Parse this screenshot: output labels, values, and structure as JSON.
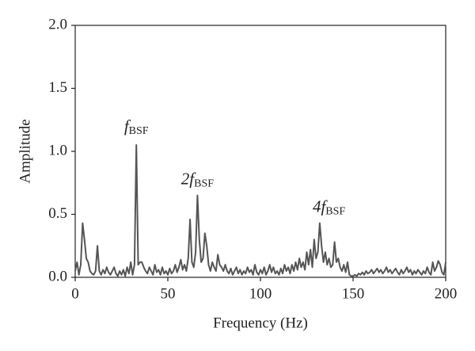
{
  "chart_data": {
    "type": "line",
    "xlabel": "Frequency (Hz)",
    "ylabel": "Amplitude",
    "xlim": [
      0,
      200
    ],
    "ylim": [
      0,
      2
    ],
    "xticks": [
      0,
      50,
      100,
      150,
      200
    ],
    "yticks": [
      {
        "value": 0,
        "label": "0.0"
      },
      0.5,
      {
        "value": 1,
        "label": "1.0"
      },
      1.5,
      {
        "value": 2,
        "label": "2.0"
      }
    ],
    "grid": false,
    "annotations": [
      {
        "text": "f",
        "subscript": "BSF",
        "x": 33,
        "y": 1.19
      },
      {
        "text": "2f",
        "subscript": "BSF",
        "x": 66,
        "y": 0.77
      },
      {
        "text": "4f",
        "subscript": "BSF",
        "x": 137,
        "y": 0.55
      }
    ],
    "x": [
      0,
      1,
      2,
      3,
      4,
      5,
      6,
      7,
      8,
      9,
      10,
      11,
      12,
      13,
      14,
      15,
      16,
      17,
      18,
      19,
      20,
      21,
      22,
      23,
      24,
      25,
      26,
      27,
      28,
      29,
      30,
      31,
      32,
      33,
      34,
      35,
      36,
      37,
      38,
      39,
      40,
      41,
      42,
      43,
      44,
      45,
      46,
      47,
      48,
      49,
      50,
      51,
      52,
      53,
      54,
      55,
      56,
      57,
      58,
      59,
      60,
      61,
      62,
      63,
      64,
      65,
      66,
      67,
      68,
      69,
      70,
      71,
      72,
      73,
      74,
      75,
      76,
      77,
      78,
      79,
      80,
      81,
      82,
      83,
      84,
      85,
      86,
      87,
      88,
      89,
      90,
      91,
      92,
      93,
      94,
      95,
      96,
      97,
      98,
      99,
      100,
      101,
      102,
      103,
      104,
      105,
      106,
      107,
      108,
      109,
      110,
      111,
      112,
      113,
      114,
      115,
      116,
      117,
      118,
      119,
      120,
      121,
      122,
      123,
      124,
      125,
      126,
      127,
      128,
      129,
      130,
      131,
      132,
      133,
      134,
      135,
      136,
      137,
      138,
      139,
      140,
      141,
      142,
      143,
      144,
      145,
      146,
      147,
      148,
      149,
      150,
      151,
      152,
      153,
      154,
      155,
      156,
      157,
      158,
      159,
      160,
      161,
      162,
      163,
      164,
      165,
      166,
      167,
      168,
      169,
      170,
      171,
      172,
      173,
      174,
      175,
      176,
      177,
      178,
      179,
      180,
      181,
      182,
      183,
      184,
      185,
      186,
      187,
      188,
      189,
      190,
      191,
      192,
      193,
      194,
      195,
      196,
      197,
      198,
      199,
      200
    ],
    "series": [
      {
        "color": "#555555",
        "values": [
          0.05,
          0.12,
          0.02,
          0.1,
          0.43,
          0.3,
          0.15,
          0.12,
          0.05,
          0.03,
          0.02,
          0.05,
          0.25,
          0.05,
          0.02,
          0.06,
          0.03,
          0.08,
          0.04,
          0.02,
          0.05,
          0.08,
          0.03,
          0.01,
          0.05,
          0.02,
          0.06,
          0.01,
          0.08,
          0.03,
          0.12,
          0.02,
          0.1,
          1.05,
          0.1,
          0.12,
          0.12,
          0.08,
          0.05,
          0.03,
          0.08,
          0.05,
          0.02,
          0.1,
          0.04,
          0.06,
          0.02,
          0.08,
          0.03,
          0.05,
          0.02,
          0.07,
          0.03,
          0.05,
          0.1,
          0.04,
          0.08,
          0.14,
          0.06,
          0.1,
          0.05,
          0.15,
          0.46,
          0.12,
          0.08,
          0.2,
          0.65,
          0.3,
          0.12,
          0.15,
          0.35,
          0.25,
          0.1,
          0.05,
          0.12,
          0.08,
          0.05,
          0.18,
          0.1,
          0.08,
          0.05,
          0.1,
          0.05,
          0.03,
          0.07,
          0.02,
          0.05,
          0.08,
          0.03,
          0.06,
          0.02,
          0.05,
          0.03,
          0.08,
          0.04,
          0.06,
          0.02,
          0.1,
          0.04,
          0.02,
          0.06,
          0.03,
          0.08,
          0.02,
          0.05,
          0.1,
          0.04,
          0.08,
          0.03,
          0.05,
          0.02,
          0.07,
          0.03,
          0.1,
          0.05,
          0.08,
          0.03,
          0.1,
          0.05,
          0.12,
          0.06,
          0.15,
          0.08,
          0.12,
          0.06,
          0.2,
          0.1,
          0.22,
          0.08,
          0.3,
          0.15,
          0.2,
          0.43,
          0.25,
          0.12,
          0.2,
          0.1,
          0.15,
          0.08,
          0.1,
          0.28,
          0.12,
          0.15,
          0.08,
          0.05,
          0.1,
          0.04,
          0.12,
          0.02,
          0.01,
          0.01,
          0.02,
          0.01,
          0.03,
          0.02,
          0.04,
          0.02,
          0.05,
          0.03,
          0.04,
          0.06,
          0.03,
          0.05,
          0.07,
          0.04,
          0.06,
          0.03,
          0.05,
          0.08,
          0.04,
          0.06,
          0.03,
          0.05,
          0.07,
          0.04,
          0.02,
          0.06,
          0.03,
          0.05,
          0.08,
          0.04,
          0.06,
          0.02,
          0.05,
          0.03,
          0.06,
          0.04,
          0.02,
          0.05,
          0.03,
          0.08,
          0.04,
          0.02,
          0.12,
          0.05,
          0.08,
          0.13,
          0.1,
          0.04,
          0.02,
          0.12
        ]
      }
    ]
  }
}
